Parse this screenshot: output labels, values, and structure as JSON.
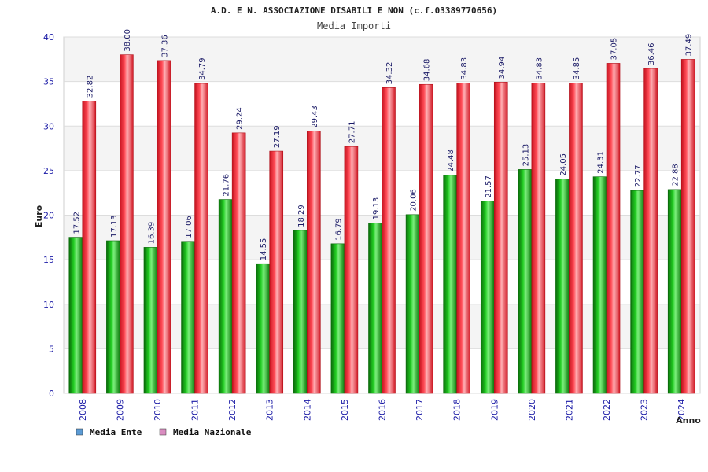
{
  "chart_data": {
    "type": "bar",
    "title": "A.D. E N. ASSOCIAZIONE DISABILI E NON (c.f.03389770656)",
    "subtitle": "Media Importi",
    "xlabel": "Anno",
    "ylabel": "Euro",
    "ylim": [
      0,
      40
    ],
    "yticks": [
      "0",
      "5",
      "10",
      "15",
      "20",
      "25",
      "30",
      "35",
      "40"
    ],
    "grid": true,
    "legend_position": "bottom-left",
    "categories": [
      "2008",
      "2009",
      "2010",
      "2011",
      "2012",
      "2013",
      "2014",
      "2015",
      "2016",
      "2017",
      "2018",
      "2019",
      "2020",
      "2021",
      "2022",
      "2023",
      "2024"
    ],
    "series": [
      {
        "name": "Media Ente",
        "legend_color": "#5b9bd5",
        "bar_color": "#11aa11",
        "values": [
          17.52,
          17.13,
          16.39,
          17.06,
          21.76,
          14.55,
          18.29,
          16.79,
          19.13,
          20.06,
          24.48,
          21.57,
          25.13,
          24.05,
          24.31,
          22.77,
          22.88
        ],
        "labels": [
          "17.52",
          "17.13",
          "16.39",
          "17.06",
          "21.76",
          "14.55",
          "18.29",
          "16.79",
          "19.13",
          "20.06",
          "24.48",
          "21.57",
          "25.13",
          "24.05",
          "24.31",
          "22.77",
          "22.88"
        ]
      },
      {
        "name": "Media Nazionale",
        "legend_color": "#d98cc0",
        "bar_color": "#ee2233",
        "values": [
          32.82,
          38.0,
          37.36,
          34.79,
          29.24,
          27.19,
          29.43,
          27.71,
          34.32,
          34.68,
          34.83,
          34.94,
          34.83,
          34.85,
          37.05,
          36.46,
          37.49
        ],
        "labels": [
          "32.82",
          "38.00",
          "37.36",
          "34.79",
          "29.24",
          "27.19",
          "29.43",
          "27.71",
          "34.32",
          "34.68",
          "34.83",
          "34.94",
          "34.83",
          "34.85",
          "37.05",
          "36.46",
          "37.49"
        ]
      }
    ]
  }
}
